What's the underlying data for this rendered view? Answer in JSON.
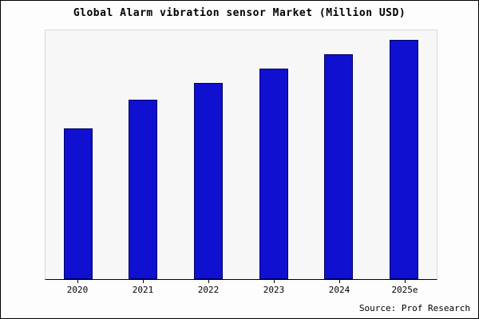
{
  "chart_data": {
    "type": "bar",
    "title": "Global Alarm vibration sensor Market (Million USD)",
    "xlabel": "",
    "ylabel": "",
    "categories": [
      "2020",
      "2021",
      "2022",
      "2023",
      "2024",
      "2025e"
    ],
    "values": [
      63,
      75,
      82,
      88,
      94,
      100
    ],
    "ylim": [
      0,
      105
    ],
    "grid": false,
    "y_axis_tick_labels_visible": false,
    "legend": "none",
    "bar_color": "#1010d0",
    "bar_border_color": "#000066",
    "source": "Source: Prof Research"
  }
}
